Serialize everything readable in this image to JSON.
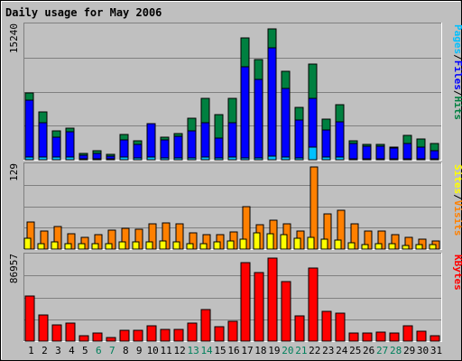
{
  "chart_data": {
    "type": "bar",
    "title": "Daily usage for May 2006",
    "categories": [
      "1",
      "2",
      "3",
      "4",
      "5",
      "6",
      "7",
      "8",
      "9",
      "10",
      "11",
      "12",
      "13",
      "14",
      "15",
      "16",
      "17",
      "18",
      "19",
      "20",
      "21",
      "22",
      "23",
      "24",
      "25",
      "26",
      "27",
      "28",
      "29",
      "30",
      "31"
    ],
    "weekend_days": [
      "6",
      "7",
      "13",
      "14",
      "20",
      "21",
      "27",
      "28"
    ],
    "panels": [
      {
        "id": "top",
        "max_label": "15240",
        "ylim": [
          0,
          15240
        ],
        "legend": [
          "Pages",
          "/",
          "Files",
          "/",
          "Hits"
        ],
        "series": [
          {
            "name": "Hits",
            "values": [
              7700,
              5500,
              3300,
              3600,
              760,
              1000,
              600,
              2900,
              2200,
              4100,
              2600,
              3000,
              4800,
              7000,
              5200,
              7000,
              14000,
              11500,
              15000,
              10200,
              6000,
              11000,
              4700,
              6300,
              2200,
              1800,
              1800,
              1400,
              2800,
              2400,
              1900
            ]
          },
          {
            "name": "Files",
            "values": [
              6800,
              4200,
              2600,
              3200,
              500,
              700,
              400,
              2300,
              1800,
              4100,
              2300,
              2700,
              3300,
              4200,
              2500,
              4200,
              10700,
              9200,
              12900,
              8200,
              4600,
              7000,
              3400,
              4400,
              1900,
              1600,
              1600,
              1300,
              1900,
              1500,
              1000
            ]
          },
          {
            "name": "Pages",
            "values": [
              330,
              270,
              260,
              300,
              60,
              90,
              50,
              260,
              200,
              320,
              230,
              240,
              220,
              310,
              240,
              270,
              250,
              220,
              450,
              310,
              230,
              1430,
              270,
              280,
              130,
              120,
              100,
              90,
              120,
              110,
              100
            ]
          }
        ]
      },
      {
        "id": "middle",
        "max_label": "129",
        "ylim": [
          0,
          129
        ],
        "legend": [
          "Sites",
          "/",
          "Visits"
        ],
        "series": [
          {
            "name": "Visits",
            "values": [
              42,
              29,
              36,
              24,
              18,
              22,
              30,
              33,
              31,
              40,
              41,
              39,
              26,
              22,
              22,
              27,
              66,
              38,
              46,
              40,
              28,
              129,
              55,
              61,
              39,
              28,
              29,
              23,
              19,
              15,
              13
            ]
          },
          {
            "name": "Sites",
            "values": [
              17,
              9,
              12,
              9,
              8,
              9,
              9,
              12,
              11,
              11,
              13,
              11,
              9,
              9,
              11,
              13,
              16,
              25,
              24,
              22,
              17,
              18,
              15,
              14,
              10,
              7,
              8,
              8,
              6,
              7,
              7
            ]
          }
        ]
      },
      {
        "id": "bottom",
        "max_label": "86957",
        "ylim": [
          0,
          86957
        ],
        "legend": [
          "KBytes"
        ],
        "series": [
          {
            "name": "KBytes",
            "values": [
              47000,
              27000,
              17000,
              19000,
              6000,
              8000,
              4000,
              11000,
              11000,
              16000,
              12000,
              12000,
              19000,
              33000,
              15000,
              21000,
              81000,
              71000,
              86000,
              62000,
              26000,
              76000,
              31000,
              29000,
              8000,
              8000,
              9000,
              8000,
              16000,
              10000,
              6000
            ]
          }
        ]
      }
    ],
    "colors": {
      "hits": "#008040",
      "files": "#0000ff",
      "pages": "#00c0ff",
      "visits": "#ff8000",
      "sites": "#ffff00",
      "kbytes": "#ff0000",
      "title": "#0000ff",
      "weekday_label": "#000000",
      "weekend_label": "#00805c",
      "plot_bg": "#c0c0c0",
      "frame_bg": "#bfbfbf"
    }
  }
}
